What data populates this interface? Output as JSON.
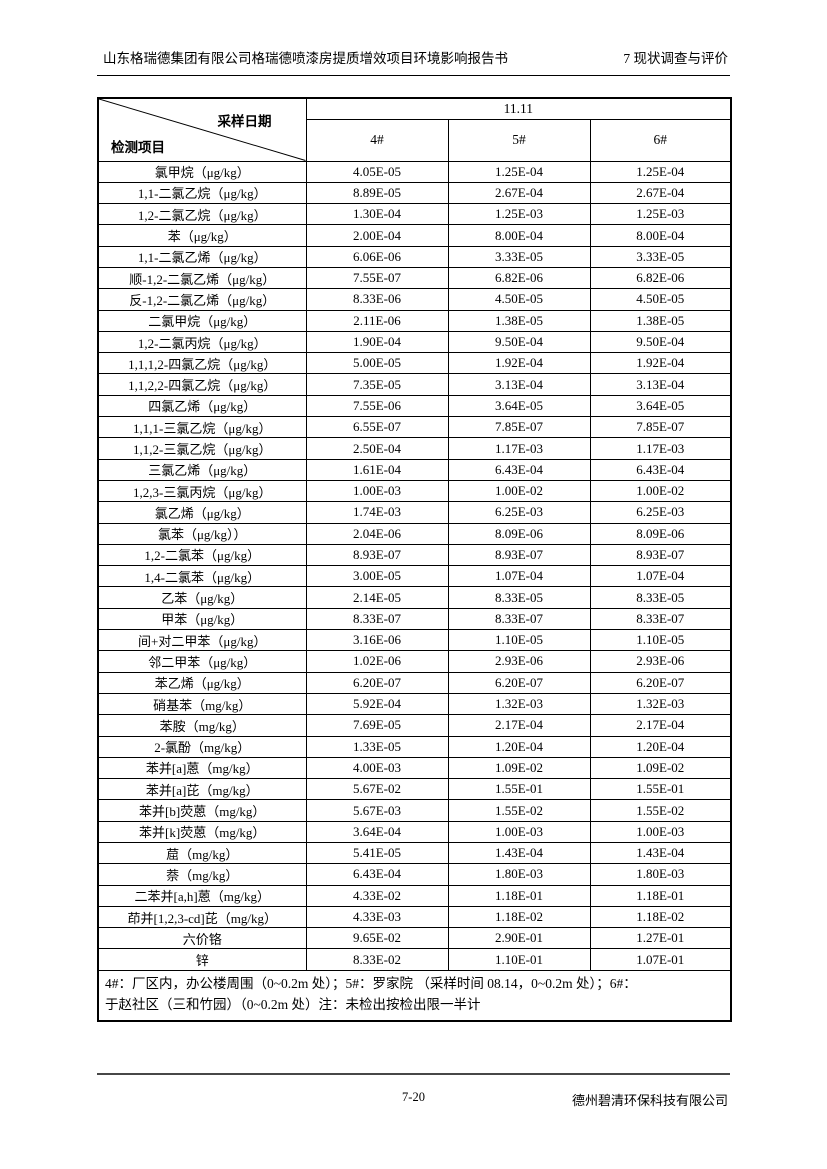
{
  "page_header": {
    "left": "山东格瑞德集团有限公司格瑞德喷漆房提质增效项目环境影响报告书",
    "right": "7 现状调查与评价"
  },
  "table": {
    "corner": {
      "top_label": "采样日期",
      "bottom_label": "检测项目"
    },
    "date_header": "11.11",
    "sample_headers": [
      "4#",
      "5#",
      "6#"
    ],
    "rows": [
      {
        "item": "氯甲烷（μg/kg）",
        "values": [
          "4.05E-05",
          "1.25E-04",
          "1.25E-04"
        ]
      },
      {
        "item": "1,1-二氯乙烷（μg/kg）",
        "values": [
          "8.89E-05",
          "2.67E-04",
          "2.67E-04"
        ]
      },
      {
        "item": "1,2-二氯乙烷（μg/kg）",
        "values": [
          "1.30E-04",
          "1.25E-03",
          "1.25E-03"
        ]
      },
      {
        "item": "苯（μg/kg）",
        "values": [
          "2.00E-04",
          "8.00E-04",
          "8.00E-04"
        ]
      },
      {
        "item": "1,1-二氯乙烯（μg/kg）",
        "values": [
          "6.06E-06",
          "3.33E-05",
          "3.33E-05"
        ]
      },
      {
        "item": "顺-1,2-二氯乙烯（μg/kg）",
        "values": [
          "7.55E-07",
          "6.82E-06",
          "6.82E-06"
        ]
      },
      {
        "item": "反-1,2-二氯乙烯（μg/kg）",
        "values": [
          "8.33E-06",
          "4.50E-05",
          "4.50E-05"
        ]
      },
      {
        "item": "二氯甲烷（μg/kg）",
        "values": [
          "2.11E-06",
          "1.38E-05",
          "1.38E-05"
        ]
      },
      {
        "item": "1,2-二氯丙烷（μg/kg）",
        "values": [
          "1.90E-04",
          "9.50E-04",
          "9.50E-04"
        ]
      },
      {
        "item": "1,1,1,2-四氯乙烷（μg/kg）",
        "values": [
          "5.00E-05",
          "1.92E-04",
          "1.92E-04"
        ]
      },
      {
        "item": "1,1,2,2-四氯乙烷（μg/kg）",
        "values": [
          "7.35E-05",
          "3.13E-04",
          "3.13E-04"
        ]
      },
      {
        "item": "四氯乙烯（μg/kg）",
        "values": [
          "7.55E-06",
          "3.64E-05",
          "3.64E-05"
        ]
      },
      {
        "item": "1,1,1-三氯乙烷（μg/kg）",
        "values": [
          "6.55E-07",
          "7.85E-07",
          "7.85E-07"
        ]
      },
      {
        "item": "1,1,2-三氯乙烷（μg/kg）",
        "values": [
          "2.50E-04",
          "1.17E-03",
          "1.17E-03"
        ]
      },
      {
        "item": "三氯乙烯（μg/kg）",
        "values": [
          "1.61E-04",
          "6.43E-04",
          "6.43E-04"
        ]
      },
      {
        "item": "1,2,3-三氯丙烷（μg/kg）",
        "values": [
          "1.00E-03",
          "1.00E-02",
          "1.00E-02"
        ]
      },
      {
        "item": "氯乙烯（μg/kg）",
        "values": [
          "1.74E-03",
          "6.25E-03",
          "6.25E-03"
        ]
      },
      {
        "item": "氯苯（μg/kg））",
        "values": [
          "2.04E-06",
          "8.09E-06",
          "8.09E-06"
        ]
      },
      {
        "item": "1,2-二氯苯（μg/kg）",
        "values": [
          "8.93E-07",
          "8.93E-07",
          "8.93E-07"
        ]
      },
      {
        "item": "1,4-二氯苯（μg/kg）",
        "values": [
          "3.00E-05",
          "1.07E-04",
          "1.07E-04"
        ]
      },
      {
        "item": "乙苯（μg/kg）",
        "values": [
          "2.14E-05",
          "8.33E-05",
          "8.33E-05"
        ]
      },
      {
        "item": "甲苯（μg/kg）",
        "values": [
          "8.33E-07",
          "8.33E-07",
          "8.33E-07"
        ]
      },
      {
        "item": "间+对二甲苯（μg/kg）",
        "values": [
          "3.16E-06",
          "1.10E-05",
          "1.10E-05"
        ]
      },
      {
        "item": "邻二甲苯（μg/kg）",
        "values": [
          "1.02E-06",
          "2.93E-06",
          "2.93E-06"
        ]
      },
      {
        "item": "苯乙烯（μg/kg）",
        "values": [
          "6.20E-07",
          "6.20E-07",
          "6.20E-07"
        ]
      },
      {
        "item": "硝基苯（mg/kg）",
        "values": [
          "5.92E-04",
          "1.32E-03",
          "1.32E-03"
        ]
      },
      {
        "item": "苯胺（mg/kg）",
        "values": [
          "7.69E-05",
          "2.17E-04",
          "2.17E-04"
        ]
      },
      {
        "item": "2-氯酚（mg/kg）",
        "values": [
          "1.33E-05",
          "1.20E-04",
          "1.20E-04"
        ]
      },
      {
        "item": "苯并[a]蒽（mg/kg）",
        "values": [
          "4.00E-03",
          "1.09E-02",
          "1.09E-02"
        ]
      },
      {
        "item": "苯并[a]芘（mg/kg）",
        "values": [
          "5.67E-02",
          "1.55E-01",
          "1.55E-01"
        ]
      },
      {
        "item": "苯并[b]荧蒽（mg/kg）",
        "values": [
          "5.67E-03",
          "1.55E-02",
          "1.55E-02"
        ]
      },
      {
        "item": "苯并[k]荧蒽（mg/kg）",
        "values": [
          "3.64E-04",
          "1.00E-03",
          "1.00E-03"
        ]
      },
      {
        "item": "䓛（mg/kg）",
        "values": [
          "5.41E-05",
          "1.43E-04",
          "1.43E-04"
        ]
      },
      {
        "item": "萘（mg/kg）",
        "values": [
          "6.43E-04",
          "1.80E-03",
          "1.80E-03"
        ]
      },
      {
        "item": "二苯并[a,h]蒽（mg/kg）",
        "values": [
          "4.33E-02",
          "1.18E-01",
          "1.18E-01"
        ]
      },
      {
        "item": "茚并[1,2,3-cd]芘（mg/kg）",
        "values": [
          "4.33E-03",
          "1.18E-02",
          "1.18E-02"
        ]
      },
      {
        "item": "六价铬",
        "values": [
          "9.65E-02",
          "2.90E-01",
          "1.27E-01"
        ]
      },
      {
        "item": "锌",
        "values": [
          "8.33E-02",
          "1.10E-01",
          "1.07E-01"
        ]
      }
    ],
    "note_lines": [
      "4#：厂区内，办公楼周围（0~0.2m 处）；5#：罗家院 （采样时间 08.14，0~0.2m 处）；6#：",
      "于赵社区（三和竹园）（0~0.2m 处）注：未检出按检出限一半计"
    ]
  },
  "page_footer": {
    "page_number": "7-20",
    "company": "德州碧清环保科技有限公司"
  }
}
